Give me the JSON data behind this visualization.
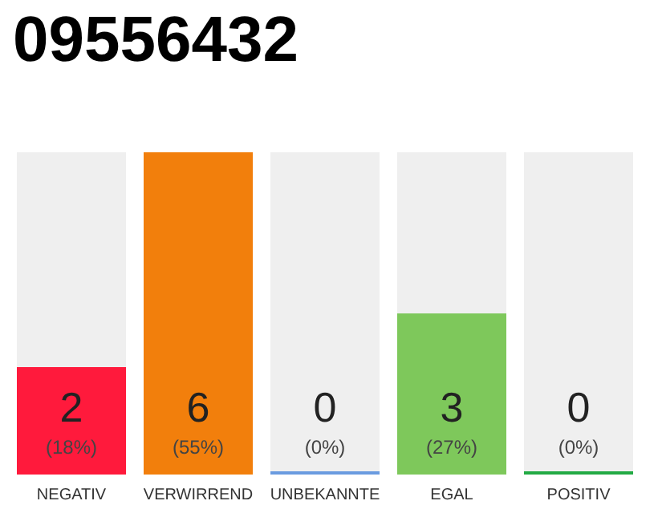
{
  "chart_data": {
    "type": "bar",
    "title": "09556432",
    "categories": [
      "NEGATIV",
      "VERWIRREND",
      "UNBEKANNTE",
      "EGAL",
      "POSITIV"
    ],
    "values": [
      2,
      6,
      0,
      3,
      0
    ],
    "colors": [
      "#ff1a3c",
      "#f27f0c",
      "#6a9be0",
      "#7ec85b",
      "#22aa44"
    ],
    "value_labels": [
      "2\n(18%)",
      "6\n(55%)",
      "0\n(0%)",
      "3\n(27%)",
      "0\n(0%)"
    ]
  }
}
